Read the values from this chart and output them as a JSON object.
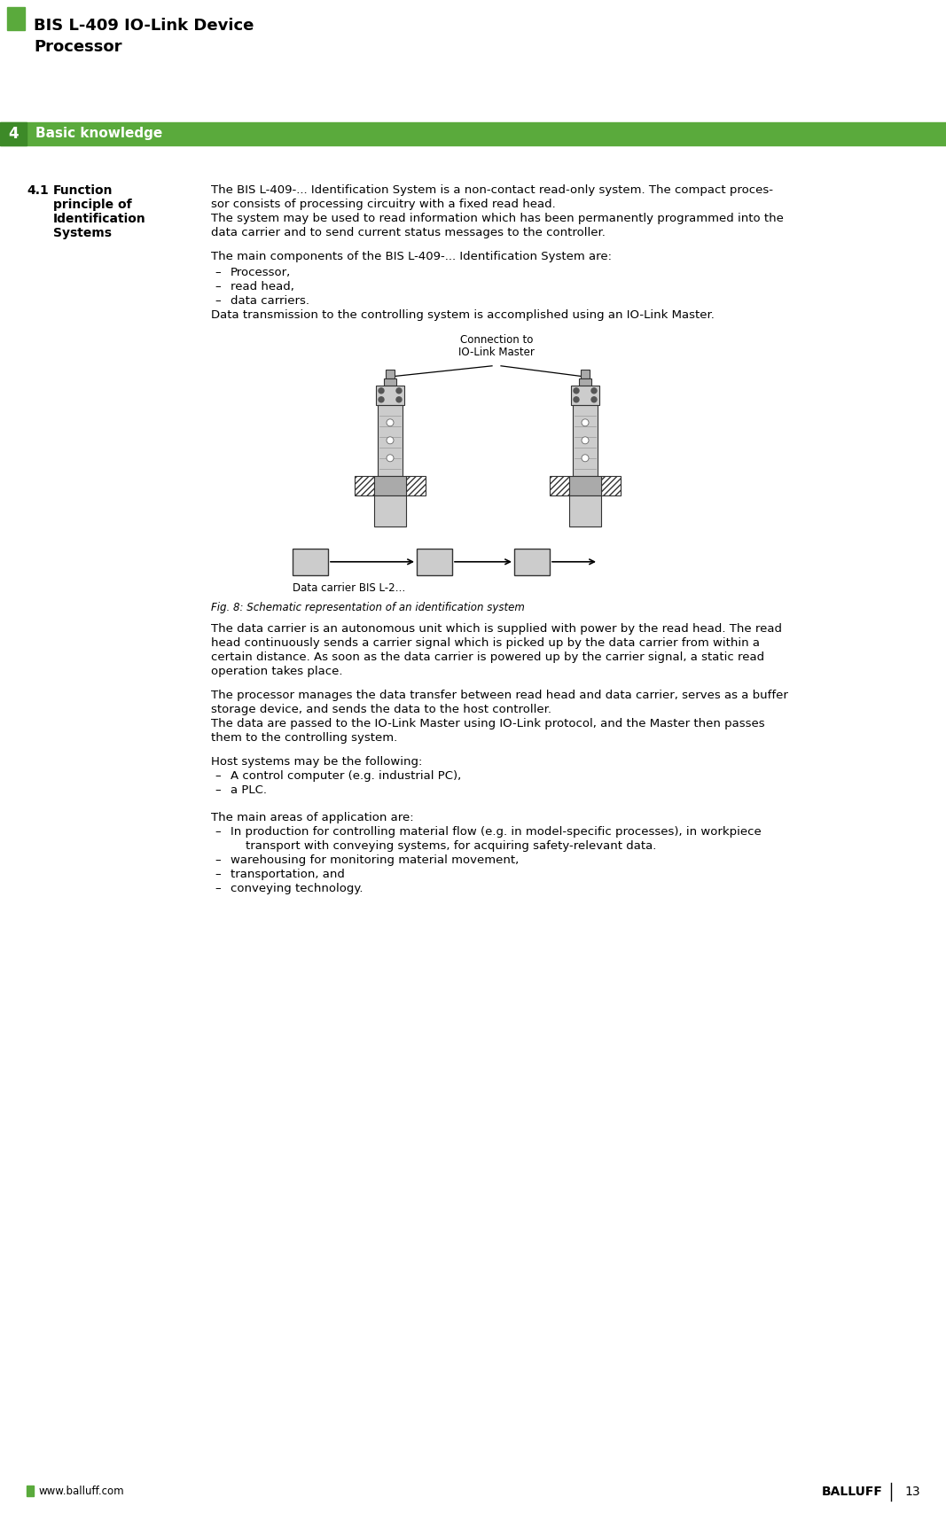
{
  "page_title_line1": "BIS L-409 IO-Link Device",
  "page_title_line2": "Processor",
  "section_number": "4",
  "section_title": "Basic knowledge",
  "section_color": "#5aaa3c",
  "section_num_color": "#3d8a28",
  "subsection_number": "4.1",
  "subsection_title_line1": "Function",
  "subsection_title_line2": "principle of",
  "subsection_title_line3": "Identification",
  "subsection_title_line4": "Systems",
  "para1_line1": "The BIS L-409-... Identification System is a non-contact read-only system. The compact proces-",
  "para1_line2": "sor consists of processing circuitry with a fixed read head.",
  "para1_line3": "The system may be used to read information which has been permanently programmed into the",
  "para1_line4": "data carrier and to send current status messages to the controller.",
  "para2": "The main components of the BIS L-409-... Identification System are:",
  "bullet1": "Processor,",
  "bullet2": "read head,",
  "bullet3": "data carriers.",
  "para3": "Data transmission to the controlling system is accomplished using an IO-Link Master.",
  "fig_connection_label_1": "Connection to",
  "fig_connection_label_2": "IO-Link Master",
  "fig_caption": "Fig. 8: Schematic representation of an identification system",
  "fig_dc_label": "Data carrier BIS L-2…",
  "para4_line1": "The data carrier is an autonomous unit which is supplied with power by the read head. The read",
  "para4_line2": "head continuously sends a carrier signal which is picked up by the data carrier from within a",
  "para4_line3": "certain distance. As soon as the data carrier is powered up by the carrier signal, a static read",
  "para4_line4": "operation takes place.",
  "para5_line1": "The processor manages the data transfer between read head and data carrier, serves as a buffer",
  "para5_line2": "storage device, and sends the data to the host controller.",
  "para5_line3": "The data are passed to the IO-Link Master using IO-Link protocol, and the Master then passes",
  "para5_line4": "them to the controlling system.",
  "para6": "Host systems may be the following:",
  "bullet4": "A control computer (e.g. industrial PC),",
  "bullet5": "a PLC.",
  "para7": "The main areas of application are:",
  "bullet6_line1": "In production for controlling material flow (e.g. in model-specific processes), in workpiece",
  "bullet6_line2": "    transport with conveying systems, for acquiring safety-relevant data.",
  "bullet7": "warehousing for monitoring material movement,",
  "bullet8": "transportation, and",
  "bullet9": "conveying technology.",
  "footer_url": "www.balluff.com",
  "footer_brand": "BALLUFF",
  "footer_page": "13",
  "green_color": "#5aaa3c",
  "text_color": "#000000",
  "bg_color": "#ffffff",
  "fig_gray_light": "#cccccc",
  "fig_gray_med": "#aaaaaa",
  "fig_gray_dark": "#666666",
  "fig_hatch_color": "#999999"
}
